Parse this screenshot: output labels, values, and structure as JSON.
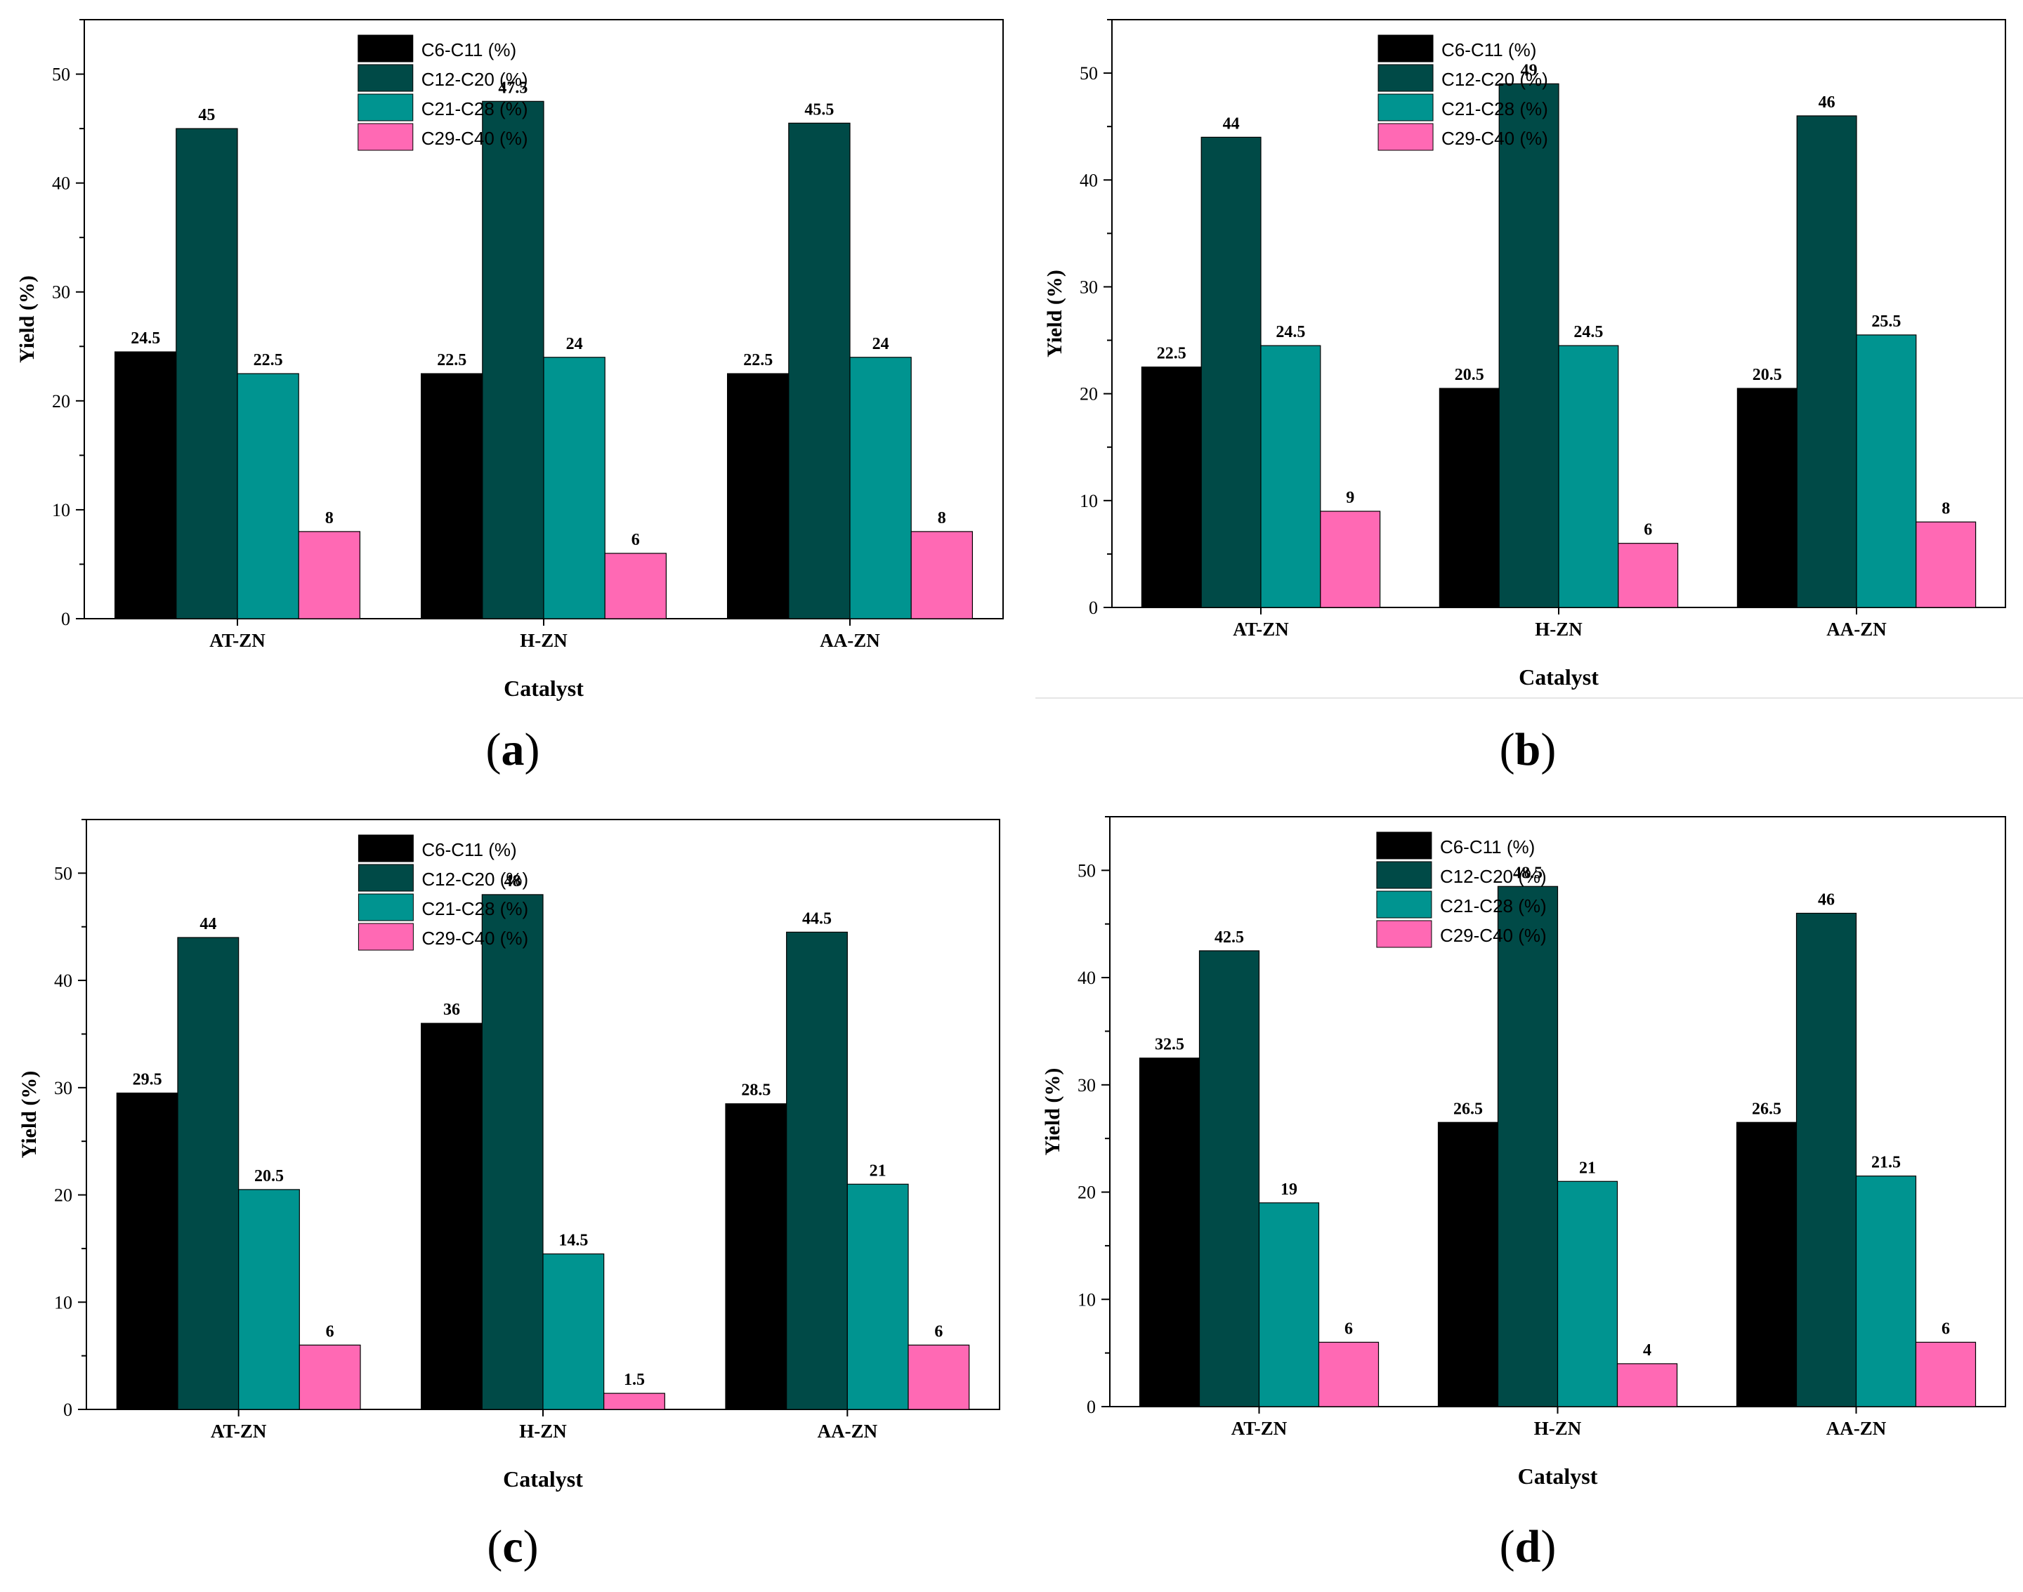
{
  "figure": {
    "colors": {
      "C6-C11 (%)": "#000000",
      "C12-C20 (%)": "#004a47",
      "C21-C28 (%)": "#009490",
      "C29-C40 (%)": "#ff69b4"
    },
    "panel_labels": [
      "a",
      "b",
      "c",
      "d"
    ]
  },
  "chart_data": [
    {
      "type": "bar",
      "panel": "a",
      "categories": [
        "AT-ZN",
        "H-ZN",
        "AA-ZN"
      ],
      "series": [
        {
          "name": "C6-C11 (%)",
          "values": [
            24.5,
            22.5,
            22.5
          ],
          "labels": [
            "24.5",
            "22.5",
            "22.5"
          ]
        },
        {
          "name": "C12-C20 (%)",
          "values": [
            45,
            47.5,
            45.5
          ],
          "labels": [
            "45",
            "47.5",
            "45.5"
          ]
        },
        {
          "name": "C21-C28 (%)",
          "values": [
            22.5,
            24,
            24
          ],
          "labels": [
            "22.5",
            "24",
            "24"
          ]
        },
        {
          "name": "C29-C40 (%)",
          "values": [
            8,
            6,
            8
          ],
          "labels": [
            "8",
            "6",
            "8"
          ]
        }
      ],
      "xlabel": "Catalyst",
      "ylabel": "Yield (%)",
      "ylim": [
        0,
        55
      ],
      "yticks": [
        0,
        10,
        20,
        30,
        40,
        50
      ],
      "grid": false,
      "legend": "top-center"
    },
    {
      "type": "bar",
      "panel": "b",
      "categories": [
        "AT-ZN",
        "H-ZN",
        "AA-ZN"
      ],
      "series": [
        {
          "name": "C6-C11 (%)",
          "values": [
            22.5,
            20.5,
            20.5
          ],
          "labels": [
            "22.5",
            "20.5",
            "20.5"
          ]
        },
        {
          "name": "C12-C20 (%)",
          "values": [
            44,
            49,
            46
          ],
          "labels": [
            "44",
            "49",
            "46"
          ]
        },
        {
          "name": "C21-C28 (%)",
          "values": [
            24.5,
            24.5,
            25.5
          ],
          "labels": [
            "24.5",
            "24.5",
            "25.5"
          ]
        },
        {
          "name": "C29-C40 (%)",
          "values": [
            9,
            6,
            8
          ],
          "labels": [
            "9",
            "6",
            "8"
          ]
        }
      ],
      "xlabel": "Catalyst",
      "ylabel": "Yield (%)",
      "ylim": [
        0,
        55
      ],
      "yticks": [
        0,
        10,
        20,
        30,
        40,
        50
      ],
      "grid": false,
      "legend": "top-center"
    },
    {
      "type": "bar",
      "panel": "c",
      "categories": [
        "AT-ZN",
        "H-ZN",
        "AA-ZN"
      ],
      "series": [
        {
          "name": "C6-C11 (%)",
          "values": [
            29.5,
            36,
            28.5
          ],
          "labels": [
            "29.5",
            "36",
            "28.5"
          ]
        },
        {
          "name": "C12-C20 (%)",
          "values": [
            44,
            48,
            44.5
          ],
          "labels": [
            "44",
            "48",
            "44.5"
          ]
        },
        {
          "name": "C21-C28 (%)",
          "values": [
            20.5,
            14.5,
            21
          ],
          "labels": [
            "20.5",
            "14.5",
            "21"
          ]
        },
        {
          "name": "C29-C40 (%)",
          "values": [
            6,
            1.5,
            6
          ],
          "labels": [
            "6",
            "1.5",
            "6"
          ]
        }
      ],
      "xlabel": "Catalyst",
      "ylabel": "Yield (%)",
      "ylim": [
        0,
        55
      ],
      "yticks": [
        0,
        10,
        20,
        30,
        40,
        50
      ],
      "grid": false,
      "legend": "top-center"
    },
    {
      "type": "bar",
      "panel": "d",
      "categories": [
        "AT-ZN",
        "H-ZN",
        "AA-ZN"
      ],
      "series": [
        {
          "name": "C6-C11 (%)",
          "values": [
            32.5,
            26.5,
            26.5
          ],
          "labels": [
            "32.5",
            "26.5",
            "26.5"
          ]
        },
        {
          "name": "C12-C20 (%)",
          "values": [
            42.5,
            48.5,
            46
          ],
          "labels": [
            "42.5",
            "48.5",
            "46"
          ]
        },
        {
          "name": "C21-C28 (%)",
          "values": [
            19,
            21,
            21.5
          ],
          "labels": [
            "19",
            "21",
            "21.5"
          ]
        },
        {
          "name": "C29-C40 (%)",
          "values": [
            6,
            4,
            6
          ],
          "labels": [
            "6",
            "4",
            "6"
          ]
        }
      ],
      "xlabel": "Catalyst",
      "ylabel": "Yield (%)",
      "ylim": [
        0,
        55
      ],
      "yticks": [
        0,
        10,
        20,
        30,
        40,
        50
      ],
      "grid": false,
      "legend": "top-center"
    }
  ]
}
